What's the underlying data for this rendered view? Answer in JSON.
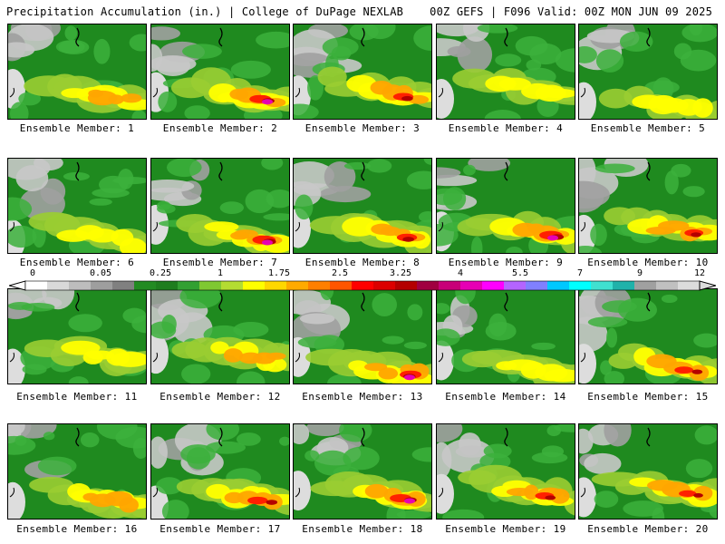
{
  "header": {
    "title_left": "Precipitation Accumulation (in.) | College of DuPage NEXLAB",
    "title_right": "00Z GEFS | F096 Valid: 00Z MON JUN 09 2025"
  },
  "members": [
    {
      "label": "Ensemble Member: 1",
      "intensity": 0.55
    },
    {
      "label": "Ensemble Member: 2",
      "intensity": 0.75
    },
    {
      "label": "Ensemble Member: 3",
      "intensity": 0.7
    },
    {
      "label": "Ensemble Member: 4",
      "intensity": 0.35
    },
    {
      "label": "Ensemble Member: 5",
      "intensity": 0.4
    },
    {
      "label": "Ensemble Member: 6",
      "intensity": 0.35
    },
    {
      "label": "Ensemble Member: 7",
      "intensity": 0.8
    },
    {
      "label": "Ensemble Member: 8",
      "intensity": 0.7
    },
    {
      "label": "Ensemble Member: 9",
      "intensity": 0.8
    },
    {
      "label": "Ensemble Member: 10",
      "intensity": 0.65
    },
    {
      "label": "Ensemble Member: 11",
      "intensity": 0.4
    },
    {
      "label": "Ensemble Member: 12",
      "intensity": 0.55
    },
    {
      "label": "Ensemble Member: 13",
      "intensity": 0.75
    },
    {
      "label": "Ensemble Member: 14",
      "intensity": 0.45
    },
    {
      "label": "Ensemble Member: 15",
      "intensity": 0.65
    },
    {
      "label": "Ensemble Member: 16",
      "intensity": 0.55
    },
    {
      "label": "Ensemble Member: 17",
      "intensity": 0.7
    },
    {
      "label": "Ensemble Member: 18",
      "intensity": 0.75
    },
    {
      "label": "Ensemble Member: 19",
      "intensity": 0.65
    },
    {
      "label": "Ensemble Member: 20",
      "intensity": 0.6
    }
  ],
  "colorbar": {
    "ticks": [
      "0",
      "0.05",
      "0.25",
      "1",
      "1.75",
      "2.5",
      "3.25",
      "4",
      "5.5",
      "7",
      "9",
      "12"
    ],
    "colors": [
      "#ffffff",
      "#d9d9d9",
      "#bdbdbd",
      "#9e9e9e",
      "#808080",
      "#228b22",
      "#1e7d1e",
      "#32a032",
      "#7fc832",
      "#b4dc32",
      "#ffff00",
      "#ffd700",
      "#ffaa00",
      "#ff7f00",
      "#ff5500",
      "#ff0000",
      "#dc0000",
      "#b40000",
      "#a00040",
      "#c80078",
      "#e600b4",
      "#ff00ff",
      "#b464ff",
      "#8080ff",
      "#00c8ff",
      "#00ffff",
      "#40e0d0",
      "#20b2aa",
      "#a0a0a0",
      "#c0c0c0",
      "#dcdcdc"
    ]
  }
}
